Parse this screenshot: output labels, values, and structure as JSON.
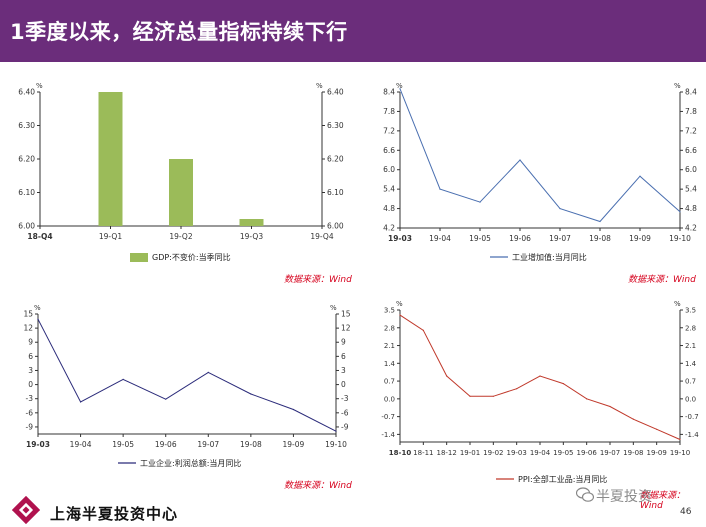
{
  "header": {
    "title": "1季度以来，经济总量指标持续下行"
  },
  "sources": [
    {
      "text": "数据来源：Wind"
    },
    {
      "text": "数据来源：Wind"
    },
    {
      "text": "数据来源：Wind"
    },
    {
      "text": "数据来源：Wind"
    }
  ],
  "footer": {
    "company": "上海半夏投资中心",
    "watermark": "半夏投资",
    "page_number": "46",
    "logo": "company-logo-icon"
  },
  "colors": {
    "header_bg": "#6b2d7b",
    "bar": "#9bbb59",
    "blue_line": "#4a6fb0",
    "navy_line": "#2b2b7a",
    "red_line": "#c0392b",
    "source_text": "#d6001c"
  },
  "chart_data": [
    {
      "type": "bar",
      "unit_left": "%",
      "unit_right": "%",
      "categories": [
        "18-Q4",
        "19-Q1",
        "19-Q2",
        "19-Q3",
        "19-Q4"
      ],
      "series": [
        {
          "name": "GDP:不变价:当季同比",
          "values": [
            null,
            6.4,
            6.2,
            6.0,
            null
          ]
        }
      ],
      "ylim": [
        6.0,
        6.4
      ],
      "yticks": [
        "6.00",
        "6.10",
        "6.20",
        "6.30",
        "6.40"
      ],
      "xticks": [
        "18-Q4",
        "19-Q1",
        "19-Q2",
        "19-Q3",
        "19-Q4"
      ],
      "legend": "bottom"
    },
    {
      "type": "line",
      "unit_left": "%",
      "unit_right": "%",
      "x": [
        "19-03",
        "19-04",
        "19-05",
        "19-06",
        "19-07",
        "19-08",
        "19-09",
        "19-10"
      ],
      "series": [
        {
          "name": "工业增加值:当月同比",
          "values": [
            8.5,
            5.4,
            5.0,
            6.3,
            4.8,
            4.4,
            5.8,
            4.7
          ]
        }
      ],
      "ylim": [
        4.2,
        8.4
      ],
      "yticks": [
        "4.2",
        "4.8",
        "5.4",
        "6.0",
        "6.6",
        "7.2",
        "7.8",
        "8.4"
      ],
      "xticks": [
        "19-03",
        "19-04",
        "19-05",
        "19-06",
        "19-07",
        "19-08",
        "19-09",
        "19-10"
      ],
      "legend": "bottom"
    },
    {
      "type": "line",
      "unit_left": "%",
      "unit_right": "%",
      "x": [
        "19-03",
        "19-04",
        "19-05",
        "19-06",
        "19-07",
        "19-08",
        "19-09",
        "19-10"
      ],
      "series": [
        {
          "name": "工业企业:利润总额:当月同比",
          "values": [
            13.9,
            -3.7,
            1.1,
            -3.1,
            2.6,
            -2.0,
            -5.3,
            -9.9
          ]
        }
      ],
      "ylim": [
        -10.5,
        15
      ],
      "yticks": [
        "-9",
        "-6",
        "-3",
        "0",
        "3",
        "6",
        "9",
        "12",
        "15"
      ],
      "xticks": [
        "19-03",
        "19-04",
        "19-05",
        "19-06",
        "19-07",
        "19-08",
        "19-09",
        "19-10"
      ],
      "legend": "bottom"
    },
    {
      "type": "line",
      "unit_left": "%",
      "unit_right": "%",
      "x": [
        "18-10",
        "18-11",
        "18-12",
        "19-01",
        "19-02",
        "19-03",
        "19-04",
        "19-05",
        "19-06",
        "19-07",
        "19-08",
        "19-09",
        "19-10"
      ],
      "series": [
        {
          "name": "PPI:全部工业品:当月同比",
          "values": [
            3.3,
            2.7,
            0.9,
            0.1,
            0.1,
            0.4,
            0.9,
            0.6,
            0.0,
            -0.3,
            -0.8,
            -1.2,
            -1.6
          ]
        }
      ],
      "ylim": [
        -1.7,
        3.5
      ],
      "yticks": [
        "-1.4",
        "-0.7",
        "0.0",
        "0.7",
        "1.4",
        "2.1",
        "2.8",
        "3.5"
      ],
      "xticks": [
        "18-10",
        "18-11",
        "18-12",
        "19-01",
        "19-02",
        "19-03",
        "19-04",
        "19-05",
        "19-06",
        "19-07",
        "19-08",
        "19-09",
        "19-10"
      ],
      "legend": "bottom"
    }
  ]
}
